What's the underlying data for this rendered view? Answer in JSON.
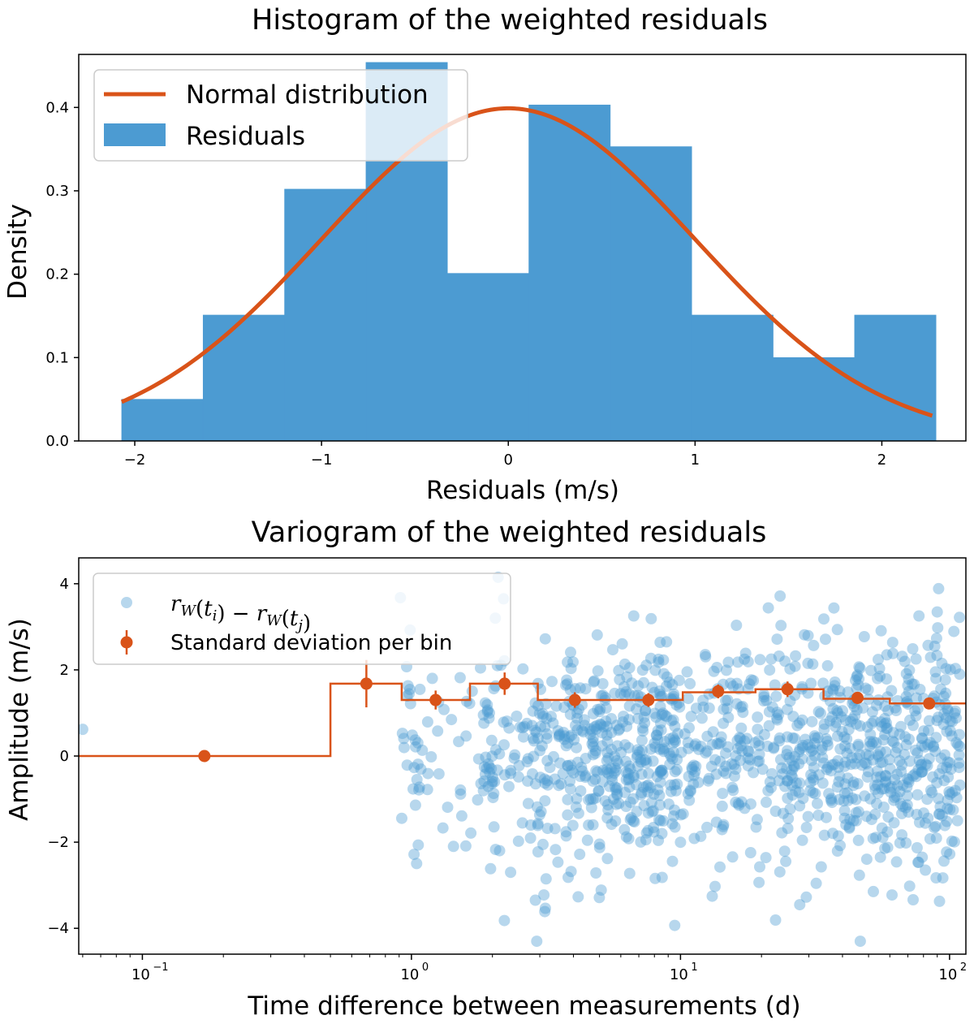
{
  "chart_data": [
    {
      "type": "histogram",
      "title": "Histogram of the weighted residuals",
      "xlabel": "Residuals (m/s)",
      "ylabel": "Density",
      "xlim": [
        -2.3,
        2.45
      ],
      "ylim": [
        0,
        0.4636
      ],
      "xticks": [
        -2,
        -1,
        0,
        1,
        2
      ],
      "xtick_labels": [
        "−2",
        "−1",
        "0",
        "1",
        "2"
      ],
      "yticks": [
        0.0,
        0.1,
        0.2,
        0.3,
        0.4
      ],
      "ytick_labels": [
        "0.0",
        "0.1",
        "0.2",
        "0.3",
        "0.4"
      ],
      "bins": [
        -2.07,
        -1.634,
        -1.198,
        -0.762,
        -0.326,
        0.11,
        0.546,
        0.982,
        1.418,
        1.854,
        2.29
      ],
      "density": [
        0.05,
        0.151,
        0.302,
        0.454,
        0.201,
        0.403,
        0.353,
        0.151,
        0.1,
        0.151
      ],
      "curve": {
        "name": "Normal distribution",
        "mean": 0,
        "std": 1,
        "x_range": [
          -2.07,
          2.27
        ]
      },
      "legend": [
        "Normal distribution",
        "Residuals"
      ],
      "legend_position": "upper-left",
      "colors": {
        "bars": "#4c9bd2",
        "curve": "#d95319"
      }
    },
    {
      "type": "scatter",
      "title": "Variogram of the weighted residuals",
      "xlabel": "Time difference between measurements (d)",
      "ylabel": "Amplitude (m/s)",
      "xscale": "log",
      "xlim": [
        0.058,
        115
      ],
      "ylim": [
        -4.6,
        4.6
      ],
      "xticks": [
        0.1,
        1,
        10,
        100
      ],
      "xtick_labels": [
        {
          "base": "10",
          "exp": "−1"
        },
        {
          "base": "10",
          "exp": "0"
        },
        {
          "base": "10",
          "exp": "1"
        },
        {
          "base": "10",
          "exp": "2"
        }
      ],
      "yticks": [
        -4,
        -2,
        0,
        2,
        4
      ],
      "ytick_labels": [
        "−4",
        "−2",
        "0",
        "2",
        "4"
      ],
      "legend": {
        "scatter": {
          "r": "r",
          "w": "W",
          "ti": "t",
          "i": "i",
          "tj": "t",
          "j": "j",
          "minus": "−"
        },
        "std_label": "Standard deviation per bin",
        "position": "upper-left"
      },
      "scatter_points": {
        "total_pairs": 1225,
        "x_range": [
          0.06,
          110
        ],
        "y_range": [
          -4.3,
          4.2
        ]
      },
      "step_series": {
        "name": "Standard deviation per bin",
        "bin_edges": [
          0.058,
          0.5,
          0.92,
          1.65,
          2.95,
          5.6,
          10.2,
          19.0,
          34.0,
          60.0,
          115
        ],
        "values": [
          0,
          1.68,
          1.3,
          1.68,
          1.3,
          1.3,
          1.48,
          1.55,
          1.33,
          1.22
        ]
      },
      "errorbar_points": {
        "x": [
          0.17,
          0.68,
          1.23,
          2.22,
          4.05,
          7.6,
          13.8,
          25.0,
          45.5,
          84.0
        ],
        "y": [
          0.0,
          1.68,
          1.3,
          1.68,
          1.3,
          1.3,
          1.5,
          1.55,
          1.35,
          1.22
        ],
        "yerr": [
          0.0,
          0.55,
          0.22,
          0.26,
          0.18,
          0.16,
          0.16,
          0.18,
          0.14,
          0.13
        ]
      },
      "colors": {
        "scatter": "#4c9bd2",
        "errorbar": "#d95319",
        "step": "#d95319"
      }
    }
  ]
}
